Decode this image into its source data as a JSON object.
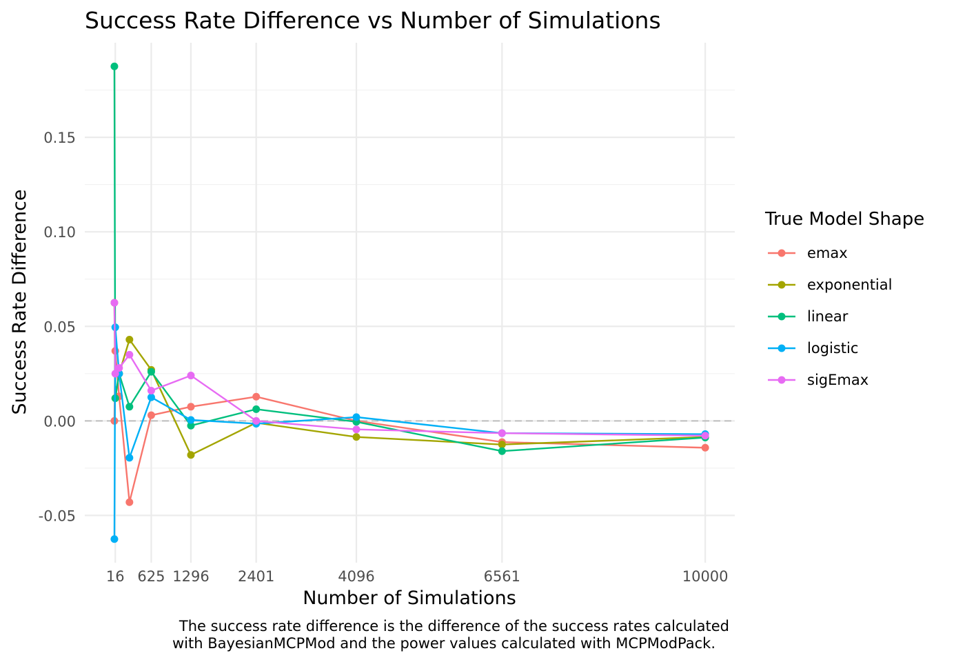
{
  "chart_data": {
    "type": "line",
    "title": "Success Rate Difference vs Number of Simulations",
    "xlabel": "Number of Simulations",
    "ylabel": "Success Rate Difference",
    "caption_lines": [
      "The success rate difference is the difference of the success rates calculated",
      "with BayesianMCPMod and the power values calculated with MCPModPack."
    ],
    "x": [
      1,
      16,
      81,
      256,
      625,
      1296,
      2401,
      4096,
      6561,
      10000
    ],
    "xticks": [
      {
        "value": 16,
        "label": "16"
      },
      {
        "value": 625,
        "label": "625"
      },
      {
        "value": 1296,
        "label": "1296"
      },
      {
        "value": 2401,
        "label": "2401"
      },
      {
        "value": 4096,
        "label": "4096"
      },
      {
        "value": 6561,
        "label": "6561"
      },
      {
        "value": 10000,
        "label": "10000"
      }
    ],
    "yticks": [
      {
        "value": -0.05,
        "label": "-0.05"
      },
      {
        "value": 0,
        "label": "0.00"
      },
      {
        "value": 0.05,
        "label": "0.05"
      },
      {
        "value": 0.1,
        "label": "0.10"
      },
      {
        "value": 0.15,
        "label": "0.15"
      }
    ],
    "xlim": [
      -500,
      10500
    ],
    "ylim": [
      -0.075,
      0.2
    ],
    "grid": true,
    "reference_line_y": 0,
    "legend": {
      "title": "True Model Shape",
      "position": "right"
    },
    "series": [
      {
        "name": "emax",
        "color": "#F8766D",
        "values": [
          0.0,
          0.037,
          0.013,
          -0.043,
          0.003,
          0.0075,
          0.0128,
          0.0,
          -0.0112,
          -0.0142
        ]
      },
      {
        "name": "exponential",
        "color": "#A3A500",
        "values": [
          0.0625,
          0.012,
          0.025,
          0.043,
          0.027,
          -0.018,
          -0.001,
          -0.0085,
          -0.0125,
          -0.0085
        ]
      },
      {
        "name": "linear",
        "color": "#00BF7D",
        "values": [
          0.1875,
          0.012,
          0.025,
          0.0075,
          0.026,
          -0.0025,
          0.0062,
          -0.0005,
          -0.016,
          -0.0088
        ]
      },
      {
        "name": "logistic",
        "color": "#00B0F6",
        "values": [
          -0.0625,
          0.0495,
          0.025,
          -0.0195,
          0.0125,
          0.0005,
          -0.0015,
          0.002,
          -0.0065,
          -0.007
        ]
      },
      {
        "name": "sigEmax",
        "color": "#E76BF3",
        "values": [
          0.0625,
          0.025,
          0.028,
          0.035,
          0.016,
          0.024,
          0.0,
          -0.0045,
          -0.0065,
          -0.0078
        ]
      }
    ]
  }
}
